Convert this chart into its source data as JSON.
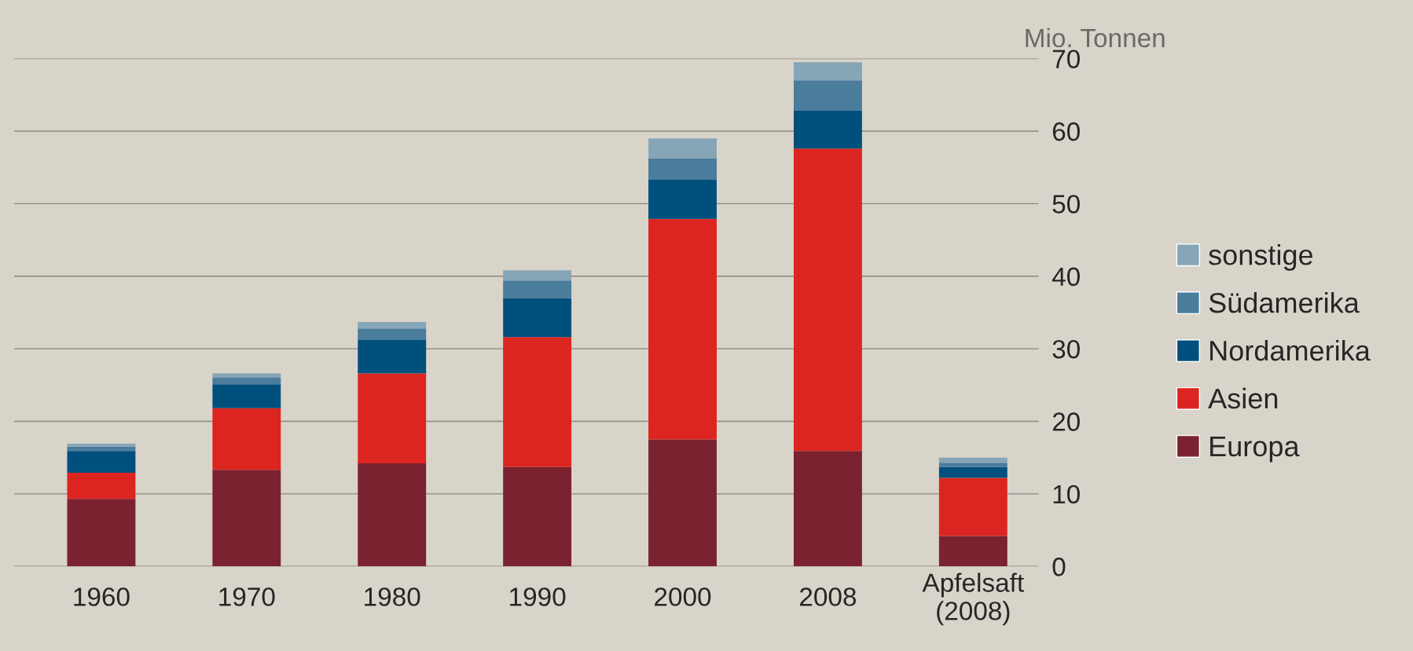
{
  "chart_data": {
    "type": "bar",
    "stacked": true,
    "ylabel": "Mio. Tonnen",
    "categories": [
      "1960",
      "1970",
      "1980",
      "1990",
      "2000",
      "2008",
      "Apfelsaft\n(2008)"
    ],
    "series": [
      {
        "name": "Europa",
        "color": "#7a2230",
        "values": [
          9.3,
          13.3,
          14.2,
          13.7,
          17.5,
          15.9,
          4.2
        ]
      },
      {
        "name": "Asien",
        "color": "#dc2520",
        "values": [
          3.6,
          8.5,
          12.4,
          17.9,
          30.4,
          41.7,
          8.0
        ]
      },
      {
        "name": "Nordamerika",
        "color": "#00507e",
        "values": [
          3.0,
          3.3,
          4.6,
          5.4,
          5.4,
          5.2,
          1.5
        ]
      },
      {
        "name": "Südamerika",
        "color": "#4a7c9c",
        "values": [
          0.6,
          0.9,
          1.6,
          2.4,
          2.9,
          4.2,
          0.6
        ]
      },
      {
        "name": "sonstige",
        "color": "#86a5b6",
        "values": [
          0.4,
          0.6,
          0.9,
          1.4,
          2.8,
          2.5,
          0.7
        ]
      }
    ],
    "ylim": [
      0,
      70
    ],
    "yticks": [
      0,
      10,
      20,
      30,
      40,
      50,
      60,
      70
    ],
    "grid": "y",
    "legend": "right"
  }
}
